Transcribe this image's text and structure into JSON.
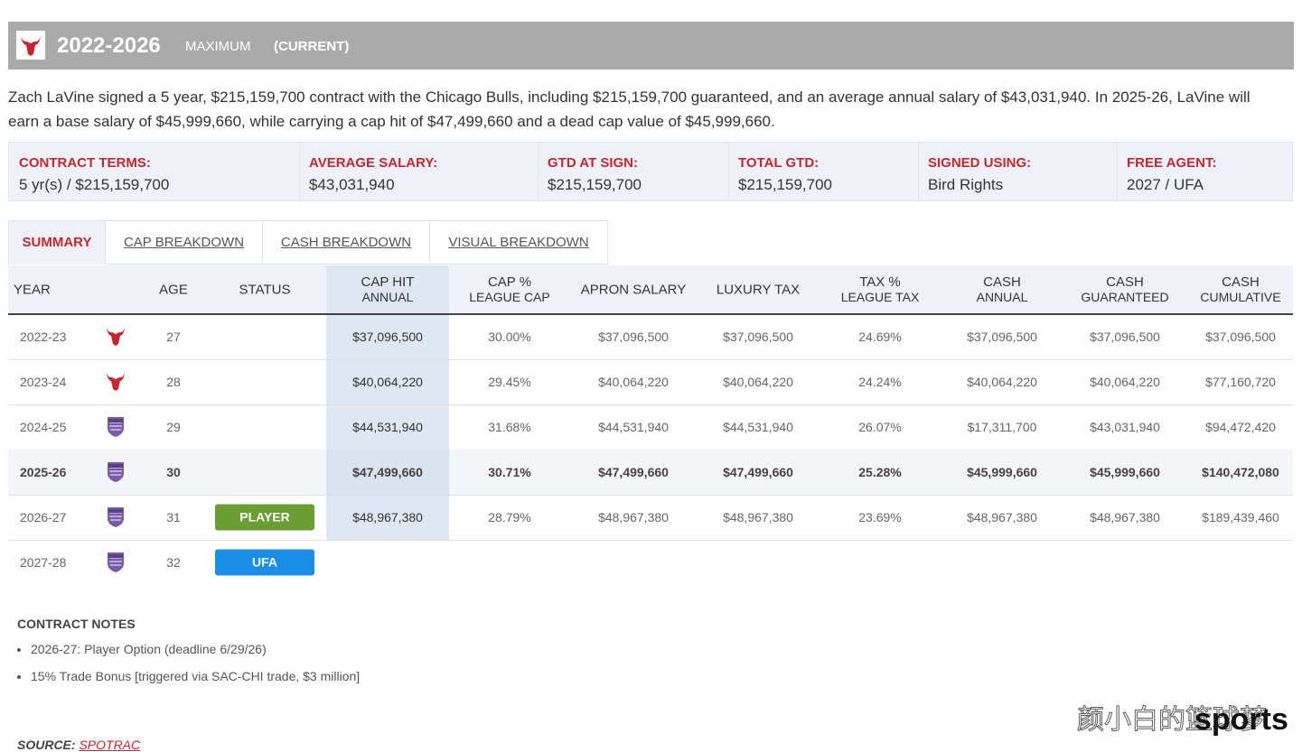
{
  "header": {
    "years": "2022-2026",
    "kind": "MAXIMUM",
    "state": "(CURRENT)"
  },
  "description": "Zach LaVine signed a 5 year, $215,159,700 contract with the Chicago Bulls, including $215,159,700 guaranteed, and an average annual salary of $43,031,940. In 2025-26, LaVine will earn a base salary of $45,999,660, while carrying a cap hit of $47,499,660 and a dead cap value of $45,999,660.",
  "terms": [
    {
      "label": "CONTRACT TERMS:",
      "value": "5 yr(s) / $215,159,700"
    },
    {
      "label": "AVERAGE SALARY:",
      "value": "$43,031,940"
    },
    {
      "label": "GTD AT SIGN:",
      "value": "$215,159,700"
    },
    {
      "label": "TOTAL GTD:",
      "value": "$215,159,700"
    },
    {
      "label": "SIGNED USING:",
      "value": "Bird Rights"
    },
    {
      "label": "FREE AGENT:",
      "value": "2027 / UFA"
    }
  ],
  "tabs": [
    "SUMMARY",
    "CAP BREAKDOWN",
    "CASH BREAKDOWN",
    "VISUAL BREAKDOWN"
  ],
  "table": {
    "columns": [
      [
        "YEAR"
      ],
      [
        "AGE"
      ],
      [
        "STATUS"
      ],
      [
        "CAP HIT",
        "ANNUAL"
      ],
      [
        "CAP %",
        "LEAGUE CAP"
      ],
      [
        "APRON SALARY"
      ],
      [
        "LUXURY TAX"
      ],
      [
        "TAX %",
        "LEAGUE TAX"
      ],
      [
        "CASH",
        "ANNUAL"
      ],
      [
        "CASH",
        "GUARANTEED"
      ],
      [
        "CASH",
        "CUMULATIVE"
      ]
    ],
    "rows": [
      [
        "2022-23",
        "27",
        null,
        "$37,096,500",
        "30.00%",
        "$37,096,500",
        "$37,096,500",
        "24.69%",
        "$37,096,500",
        "$37,096,500",
        "$37,096,500"
      ],
      [
        "2023-24",
        "28",
        null,
        "$40,064,220",
        "29.45%",
        "$40,064,220",
        "$40,064,220",
        "24.24%",
        "$40,064,220",
        "$40,064,220",
        "$77,160,720"
      ],
      [
        "2024-25",
        "29",
        null,
        "$44,531,940",
        "31.68%",
        "$44,531,940",
        "$44,531,940",
        "26.07%",
        "$17,311,700",
        "$43,031,940",
        "$94,472,420"
      ],
      [
        "2025-26",
        "30",
        null,
        "$47,499,660",
        "30.71%",
        "$47,499,660",
        "$47,499,660",
        "25.28%",
        "$45,999,660",
        "$45,999,660",
        "$140,472,080"
      ],
      [
        "2026-27",
        "31",
        "PLAYER",
        "$48,967,380",
        "28.79%",
        "$48,967,380",
        "$48,967,380",
        "23.69%",
        "$48,967,380",
        "$48,967,380",
        "$189,439,460"
      ],
      [
        "2027-28",
        "32",
        "UFA"
      ]
    ]
  },
  "notes": {
    "title": "CONTRACT NOTES",
    "items": [
      "2026-27: Player Option (deadline 6/29/26)",
      "15% Trade Bonus [triggered via SAC-CHI trade, $3 million]"
    ]
  },
  "source": {
    "label": "SOURCE:",
    "link": "SPOTRAC"
  },
  "watermark": {
    "cn": "颜小白的篮球梦",
    "en": "sports"
  }
}
